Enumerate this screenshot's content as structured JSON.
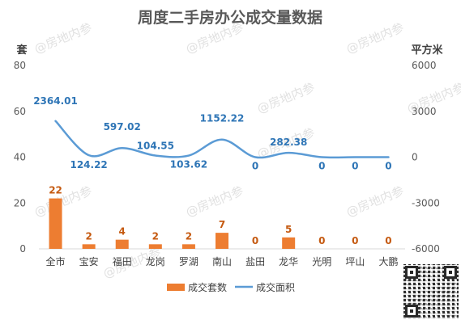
{
  "chart_data": {
    "type": "bar+line",
    "title": "周度二手房办公成交量数据",
    "categories": [
      "全市",
      "宝安",
      "福田",
      "龙岗",
      "罗湖",
      "南山",
      "盐田",
      "龙华",
      "光明",
      "坪山",
      "大鹏"
    ],
    "series": [
      {
        "name": "成交套数",
        "type": "bar",
        "axis": "left",
        "color": "#ED7D31",
        "values": [
          22,
          2,
          4,
          2,
          2,
          7,
          0,
          5,
          0,
          0,
          0
        ],
        "labels": [
          "22",
          "2",
          "4",
          "2",
          "2",
          "7",
          "0",
          "5",
          "0",
          "0",
          "0"
        ]
      },
      {
        "name": "成交面积",
        "type": "line",
        "axis": "right",
        "color": "#5B9BD5",
        "values": [
          2364.01,
          124.22,
          597.02,
          104.55,
          103.62,
          1152.22,
          0,
          282.38,
          0,
          0,
          0
        ],
        "labels": [
          "2364.01",
          "124.22",
          "597.02",
          "104.55",
          "103.62",
          "1152.22",
          "0",
          "282.38",
          "0",
          "0",
          "0"
        ]
      }
    ],
    "y_left": {
      "unit": "套",
      "min": 0,
      "max": 80,
      "ticks": [
        "0",
        "20",
        "40",
        "60",
        "80"
      ]
    },
    "y_right": {
      "unit": "平方米",
      "min": -6000,
      "max": 6000,
      "ticks": [
        "-6000",
        "-3000",
        "0",
        "3000",
        "6000"
      ]
    },
    "legend": {
      "placement": "bottom",
      "items": [
        "成交套数",
        "成交面积"
      ]
    },
    "grid": false
  },
  "watermark": "@房地内参"
}
